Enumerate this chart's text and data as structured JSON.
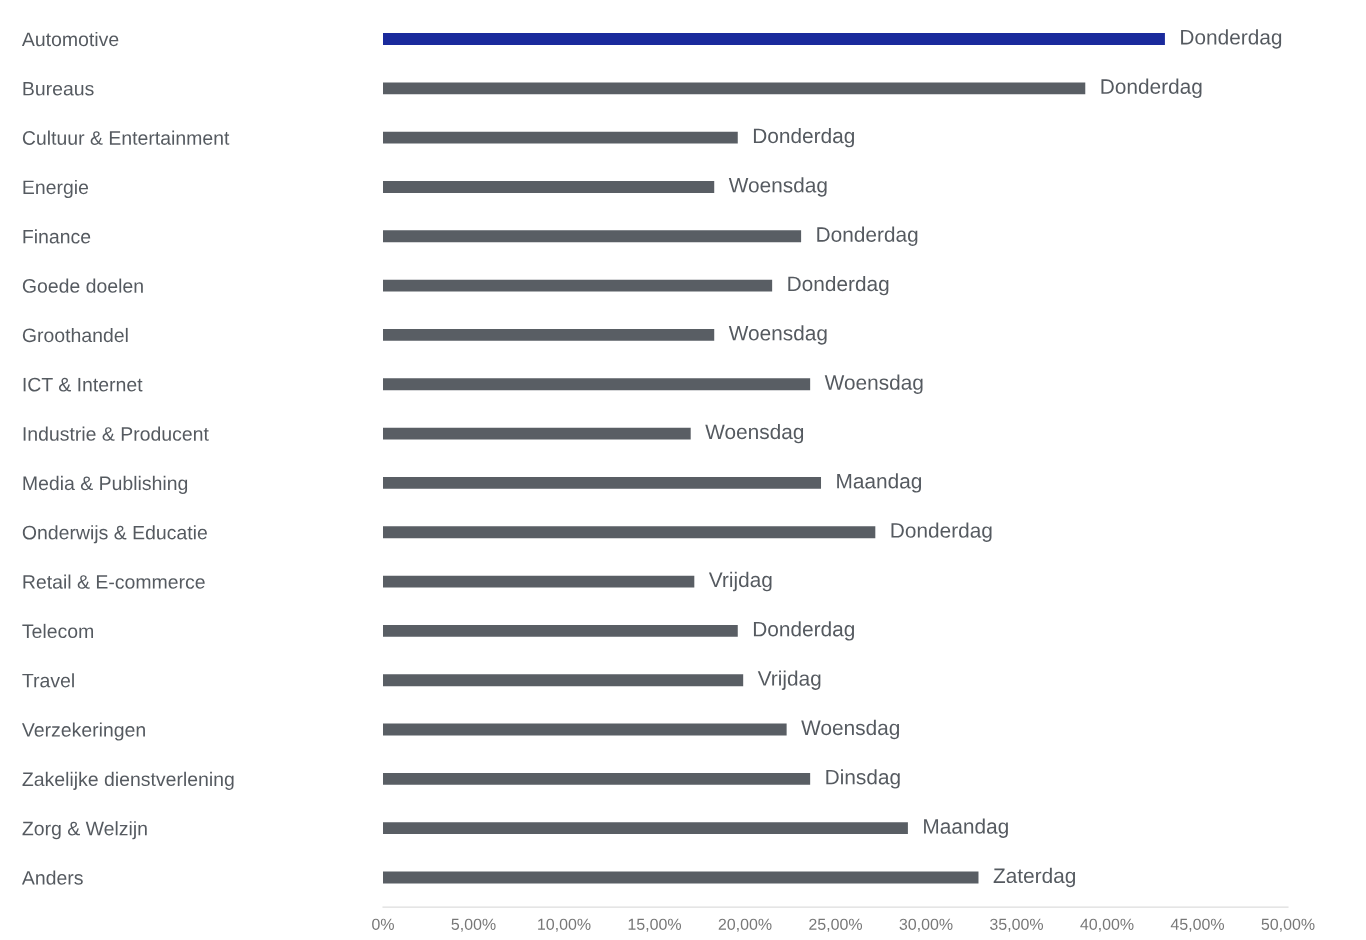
{
  "chart_data": {
    "type": "bar",
    "orientation": "horizontal",
    "categories": [
      "Automotive",
      "Bureaus",
      "Cultuur & Entertainment",
      "Energie",
      "Finance",
      "Goede doelen",
      "Groothandel",
      "ICT & Internet",
      "Industrie & Producent",
      "Media & Publishing",
      "Onderwijs & Educatie",
      "Retail & E-commerce",
      "Telecom",
      "Travel",
      "Verzekeringen",
      "Zakelijke dienstverlening",
      "Zorg & Welzijn",
      "Anders"
    ],
    "values": [
      43.2,
      38.8,
      19.6,
      18.3,
      23.1,
      21.5,
      18.3,
      23.6,
      17.0,
      24.2,
      27.2,
      17.2,
      19.6,
      19.9,
      22.3,
      23.6,
      29.0,
      32.9
    ],
    "colors": [
      "#1a2a9c",
      "#595e64",
      "#595e64",
      "#595e64",
      "#595e64",
      "#595e64",
      "#595e64",
      "#595e64",
      "#595e64",
      "#595e64",
      "#595e64",
      "#595e64",
      "#595e64",
      "#595e64",
      "#595e64",
      "#595e64",
      "#595e64",
      "#595e64"
    ],
    "value_labels": [
      "Donderdag",
      "Donderdag",
      "Donderdag",
      "Woensdag",
      "Donderdag",
      "Donderdag",
      "Woensdag",
      "Woensdag",
      "Woensdag",
      "Maandag",
      "Donderdag",
      "Vrijdag",
      "Donderdag",
      "Vrijdag",
      "Woensdag",
      "Dinsdag",
      "Maandag",
      "Zaterdag"
    ],
    "xlim": [
      0,
      50
    ],
    "xticks": [
      {
        "value": 0,
        "label": "0%"
      },
      {
        "value": 5,
        "label": "5,00%"
      },
      {
        "value": 10,
        "label": "10,00%"
      },
      {
        "value": 15,
        "label": "15,00%"
      },
      {
        "value": 20,
        "label": "20,00%"
      },
      {
        "value": 25,
        "label": "25,00%"
      },
      {
        "value": 30,
        "label": "30,00%"
      },
      {
        "value": 35,
        "label": "35,00%"
      },
      {
        "value": 40,
        "label": "40,00%"
      },
      {
        "value": 45,
        "label": "45,00%"
      },
      {
        "value": 50,
        "label": "50,00%"
      }
    ]
  }
}
